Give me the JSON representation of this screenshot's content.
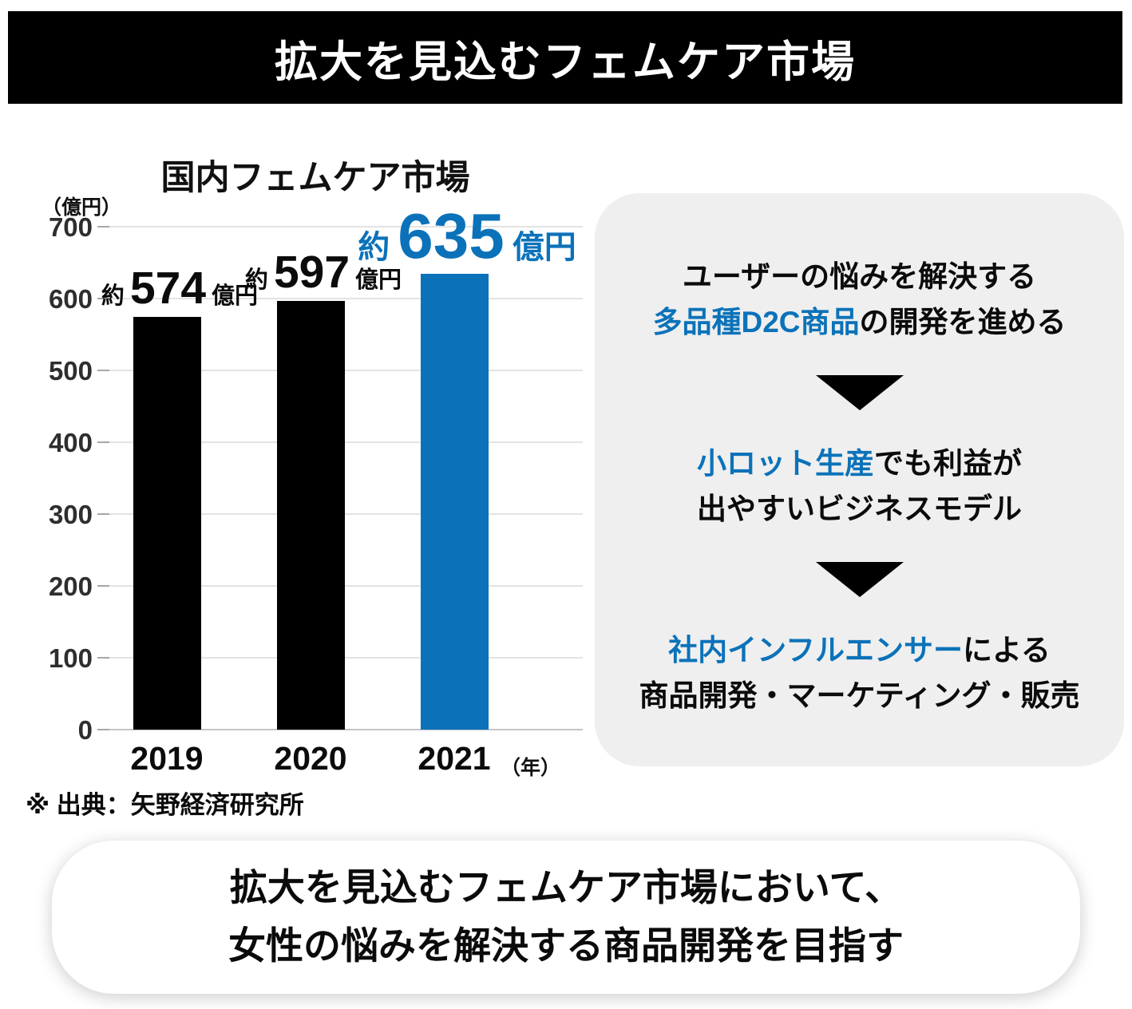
{
  "header": {
    "title": "拡大を見込むフェムケア市場"
  },
  "colors": {
    "accent_blue": "#0B72B9",
    "bar_black": "#000000",
    "panel_bg": "#EFEFEF",
    "gridline": "#E3E3E3",
    "axis_baseline": "#C4C4C4"
  },
  "chart_data": {
    "type": "bar",
    "title": "国内フェムケア市場",
    "ylabel": "（億円）",
    "xlabel": "（年）",
    "categories": [
      "2019",
      "2020",
      "2021"
    ],
    "values": [
      574,
      597,
      635
    ],
    "bar_colors": [
      "#000000",
      "#000000",
      "#0B72B9"
    ],
    "annotations": [
      {
        "prefix": "約",
        "value": "574",
        "suffix": "億円",
        "emphasis": false
      },
      {
        "prefix": "約",
        "value": "597",
        "suffix": "億円",
        "emphasis": false
      },
      {
        "prefix": "約",
        "value": "635",
        "suffix": "億円",
        "emphasis": true
      }
    ],
    "ylim": [
      0,
      700
    ],
    "yticks": [
      0,
      100,
      200,
      300,
      400,
      500,
      600,
      700
    ],
    "grid": true,
    "legend": "none",
    "source_note": "※ 出典：矢野経済研究所"
  },
  "panel": {
    "steps": [
      {
        "l1_black": "ユーザーの悩みを解決する",
        "l2_blue": "多品種D2C商品",
        "l2_black": "の開発を進める"
      },
      {
        "l1_blue": "小ロット生産",
        "l1_black": "でも利益が",
        "l2_black": "出やすいビジネスモデル"
      },
      {
        "l1_blue": "社内インフルエンサー",
        "l1_black": "による",
        "l2_black": "商品開発・マーケティング・販売"
      }
    ]
  },
  "summary": {
    "line1": "拡大を見込むフェムケア市場において、",
    "line2": "女性の悩みを解決する商品開発を目指す"
  }
}
